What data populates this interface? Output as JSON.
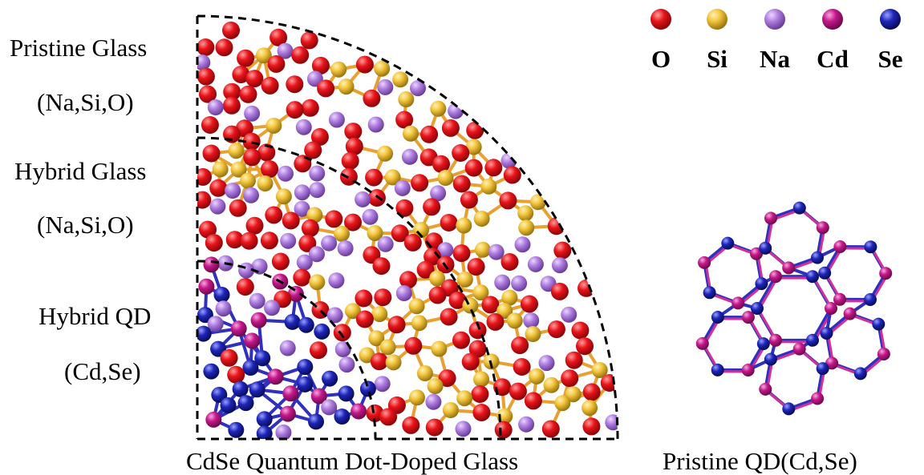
{
  "labels": {
    "pristine_glass": "Pristine Glass",
    "pristine_glass_comp": "(Na,Si,O)",
    "hybrid_glass": "Hybrid Glass",
    "hybrid_glass_comp": "(Na,Si,O)",
    "hybrid_qd": "Hybrid QD",
    "hybrid_qd_comp": "(Cd,Se)",
    "main_caption": "CdSe Quantum Dot-Doped Glass",
    "side_caption": "Pristine QD(Cd,Se)"
  },
  "legend": [
    {
      "symbol": "O",
      "color": "#e8141a"
    },
    {
      "symbol": "Si",
      "color": "#f2c43a"
    },
    {
      "symbol": "Na",
      "color": "#b07ee0"
    },
    {
      "symbol": "Cd",
      "color": "#c4178a"
    },
    {
      "symbol": "Se",
      "color": "#1e26b8"
    }
  ],
  "colors": {
    "bond_si_o": "#e8a030",
    "bond_cd_se": "#3030c0",
    "bond_cd_se_alt": "#d0309a",
    "arc_line": "#000000"
  }
}
